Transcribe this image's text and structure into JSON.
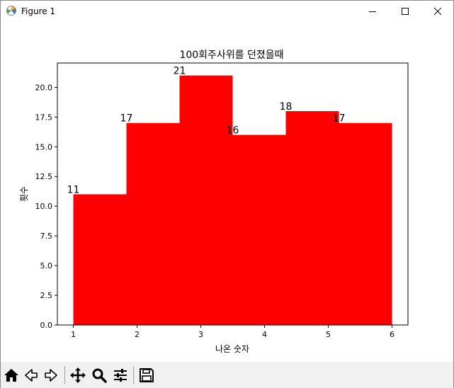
{
  "window": {
    "title": "Figure 1"
  },
  "icons": {
    "app": "matplotlib-figure-icon",
    "minimize": "minimize-icon",
    "maximize": "maximize-icon",
    "close": "close-icon",
    "home": "home-icon",
    "back": "back-arrow-icon",
    "forward": "forward-arrow-icon",
    "pan": "pan-move-icon",
    "zoom": "zoom-magnifier-icon",
    "configure": "configure-subplots-icon",
    "save": "save-floppy-icon"
  },
  "chart_data": {
    "type": "bar",
    "title": "100회주사위를 던졌을때",
    "xlabel": "나온 숫자",
    "ylabel": "횟수",
    "bar_color": "#ff0000",
    "bins": [
      {
        "from": 1.0,
        "to": 1.8333,
        "count": 11,
        "label": "11"
      },
      {
        "from": 1.8333,
        "to": 2.6667,
        "count": 17,
        "label": "17"
      },
      {
        "from": 2.6667,
        "to": 3.5,
        "count": 21,
        "label": "21"
      },
      {
        "from": 3.5,
        "to": 4.3333,
        "count": 16,
        "label": "16"
      },
      {
        "from": 4.3333,
        "to": 5.1667,
        "count": 18,
        "label": "18"
      },
      {
        "from": 5.1667,
        "to": 6.0,
        "count": 17,
        "label": "17"
      }
    ],
    "xlim": [
      0.75,
      6.25
    ],
    "ylim": [
      0,
      22.05
    ],
    "xticks": [
      1,
      2,
      3,
      4,
      5,
      6
    ],
    "xtick_labels": [
      "1",
      "2",
      "3",
      "4",
      "5",
      "6"
    ],
    "yticks": [
      0,
      2.5,
      5,
      7.5,
      10,
      12.5,
      15,
      17.5,
      20
    ],
    "ytick_labels": [
      "0.0",
      "2.5",
      "5.0",
      "7.5",
      "10.0",
      "12.5",
      "15.0",
      "17.5",
      "20.0"
    ],
    "grid": false
  }
}
